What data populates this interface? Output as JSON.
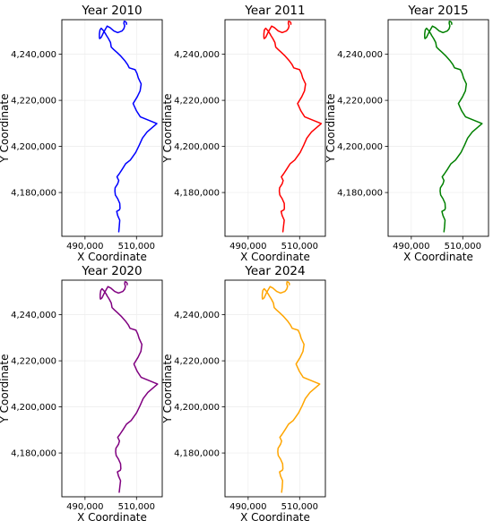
{
  "chart_data": [
    {
      "type": "line",
      "title": "Year 2010",
      "xlabel": "X Coordinate",
      "ylabel": "Y Coordinate",
      "xlim": [
        481000,
        520000
      ],
      "ylim": [
        4161000,
        4255000
      ],
      "xticks": [
        490000,
        510000
      ],
      "xtick_labels": [
        "490,000",
        "510,000"
      ],
      "yticks": [
        4180000,
        4200000,
        4220000,
        4240000
      ],
      "ytick_labels": [
        "4,180,000",
        "4,200,000",
        "4,220,000",
        "4,240,000"
      ],
      "grid": true,
      "color": "#0000ff",
      "x": [
        503100,
        503300,
        503500,
        502700,
        502300,
        503400,
        503600,
        503500,
        502700,
        501800,
        501600,
        501700,
        502700,
        503100,
        502400,
        503200,
        504400,
        505800,
        507600,
        509700,
        511100,
        512300,
        514100,
        517900,
        511500,
        510000,
        508700,
        510300,
        511400,
        511800,
        510700,
        510200,
        509500,
        507200,
        506500,
        505400,
        503900,
        502400,
        501100,
        500200,
        499900,
        499100,
        498300,
        497900,
        497200,
        496300,
        495800,
        495600,
        495600,
        495700,
        496300,
        497100,
        497900,
        498600,
        499700,
        501200,
        502700,
        504400,
        505100,
        505400,
        505100,
        505200,
        505700,
        506100,
        506100
      ],
      "y": [
        4163000,
        4165000,
        4168000,
        4170000,
        4171800,
        4172500,
        4173200,
        4175300,
        4177300,
        4178900,
        4180600,
        4182000,
        4183800,
        4185200,
        4186800,
        4188000,
        4190000,
        4192500,
        4194100,
        4197400,
        4200600,
        4203600,
        4206300,
        4209900,
        4212800,
        4215400,
        4218600,
        4221500,
        4224100,
        4227100,
        4229700,
        4231600,
        4233300,
        4234100,
        4235600,
        4237300,
        4239200,
        4240800,
        4242100,
        4243100,
        4245100,
        4246800,
        4248200,
        4249000,
        4250200,
        4251300,
        4250500,
        4248900,
        4247300,
        4246800,
        4247300,
        4249200,
        4250800,
        4252200,
        4251600,
        4250100,
        4249400,
        4250100,
        4251100,
        4252300,
        4253400,
        4254300,
        4254200,
        4253600,
        4253000
      ]
    },
    {
      "type": "line",
      "title": "Year 2011",
      "xlabel": "X Coordinate",
      "ylabel": "Y Coordinate",
      "xlim": [
        481000,
        520000
      ],
      "ylim": [
        4161000,
        4255000
      ],
      "xticks": [
        490000,
        510000
      ],
      "xtick_labels": [
        "490,000",
        "510,000"
      ],
      "yticks": [
        4180000,
        4200000,
        4220000,
        4240000
      ],
      "ytick_labels": [
        "4,180,000",
        "4,200,000",
        "4,220,000",
        "4,240,000"
      ],
      "grid": true,
      "color": "#ff0000",
      "x": [
        503500,
        503700,
        504000,
        503200,
        502800,
        503900,
        504100,
        504000,
        503200,
        502300,
        502100,
        502200,
        503200,
        503600,
        502900,
        503700,
        504900,
        506300,
        508100,
        510200,
        511600,
        512800,
        514600,
        518400,
        512000,
        510500,
        509200,
        510800,
        511900,
        512300,
        511200,
        510700,
        510000,
        507700,
        507000,
        505900,
        504400,
        502900,
        501600,
        500700,
        500400,
        499600,
        498800,
        498400,
        497700,
        496800,
        496300,
        496100,
        496100,
        496200,
        496800,
        497600,
        498400,
        499100,
        500200,
        501700,
        503200,
        504900,
        505600,
        505900,
        505600,
        505700,
        506200,
        506600,
        506600
      ],
      "y": [
        4163000,
        4165000,
        4168000,
        4170000,
        4171800,
        4172500,
        4173200,
        4175300,
        4177300,
        4178900,
        4180600,
        4182000,
        4183800,
        4185200,
        4186800,
        4188000,
        4190000,
        4192500,
        4194100,
        4197400,
        4200600,
        4203600,
        4206300,
        4209900,
        4212800,
        4215400,
        4218600,
        4221500,
        4224100,
        4227100,
        4229700,
        4231600,
        4233300,
        4234100,
        4235600,
        4237300,
        4239200,
        4240800,
        4242100,
        4243100,
        4245100,
        4246800,
        4248200,
        4249000,
        4250200,
        4251300,
        4250500,
        4248900,
        4247300,
        4246800,
        4247300,
        4249200,
        4250800,
        4252200,
        4251600,
        4250100,
        4249400,
        4250100,
        4251100,
        4252300,
        4253400,
        4254300,
        4254200,
        4253600,
        4253000
      ]
    },
    {
      "type": "line",
      "title": "Year 2015",
      "xlabel": "X Coordinate",
      "ylabel": "Y Coordinate",
      "xlim": [
        481000,
        520000
      ],
      "ylim": [
        4161000,
        4255000
      ],
      "xticks": [
        490000,
        510000
      ],
      "xtick_labels": [
        "490,000",
        "510,000"
      ],
      "yticks": [
        4180000,
        4200000,
        4220000,
        4240000
      ],
      "ytick_labels": [
        "4,180,000",
        "4,200,000",
        "4,220,000",
        "4,240,000"
      ],
      "grid": true,
      "color": "#008000",
      "x": [
        502700,
        502900,
        503100,
        502300,
        501900,
        503000,
        503200,
        503100,
        502300,
        501400,
        501200,
        501300,
        502300,
        502700,
        502000,
        502800,
        504000,
        505400,
        507200,
        509300,
        510700,
        511900,
        513700,
        517500,
        511100,
        509600,
        508300,
        509900,
        511000,
        511400,
        510300,
        509800,
        509100,
        506800,
        506100,
        505000,
        503500,
        502000,
        500700,
        499800,
        499500,
        498700,
        497900,
        497500,
        496800,
        495900,
        495400,
        495200,
        495200,
        495300,
        495900,
        496700,
        497500,
        498200,
        499300,
        500800,
        502300,
        504000,
        504700,
        505000,
        504700,
        504800,
        505300,
        505700,
        505700
      ],
      "y": [
        4163000,
        4165000,
        4168000,
        4170000,
        4171800,
        4172500,
        4173200,
        4175300,
        4177300,
        4178900,
        4180600,
        4182000,
        4183800,
        4185200,
        4186800,
        4188000,
        4190000,
        4192500,
        4194100,
        4197400,
        4200600,
        4203600,
        4206300,
        4209900,
        4212800,
        4215400,
        4218600,
        4221500,
        4224100,
        4227100,
        4229700,
        4231600,
        4233300,
        4234100,
        4235600,
        4237300,
        4239200,
        4240800,
        4242100,
        4243100,
        4245100,
        4246800,
        4248200,
        4249000,
        4250200,
        4251300,
        4250500,
        4248900,
        4247300,
        4246800,
        4247300,
        4249200,
        4250800,
        4252200,
        4251600,
        4250100,
        4249400,
        4250100,
        4251100,
        4252300,
        4253400,
        4254300,
        4254200,
        4253600,
        4253000
      ]
    },
    {
      "type": "line",
      "title": "Year 2020",
      "xlabel": "X Coordinate",
      "ylabel": "Y Coordinate",
      "xlim": [
        481000,
        520000
      ],
      "ylim": [
        4161000,
        4255000
      ],
      "xticks": [
        490000,
        510000
      ],
      "xtick_labels": [
        "490,000",
        "510,000"
      ],
      "yticks": [
        4180000,
        4200000,
        4220000,
        4240000
      ],
      "ytick_labels": [
        "4,180,000",
        "4,200,000",
        "4,220,000",
        "4,240,000"
      ],
      "grid": true,
      "color": "#800080",
      "x": [
        503300,
        503500,
        503800,
        503000,
        502600,
        503700,
        503900,
        503800,
        503000,
        502100,
        501900,
        502000,
        503000,
        503400,
        502700,
        503500,
        504700,
        506100,
        507900,
        510000,
        511400,
        512600,
        514400,
        518200,
        511800,
        510300,
        509000,
        510600,
        511700,
        512100,
        511000,
        510500,
        509800,
        507500,
        506800,
        505700,
        504200,
        502700,
        501400,
        500500,
        500200,
        499400,
        498600,
        498200,
        497500,
        496600,
        496100,
        495900,
        495900,
        496000,
        496600,
        497400,
        498200,
        498900,
        500000,
        501500,
        503000,
        504700,
        505400,
        505700,
        505400,
        505500,
        506000,
        506400,
        506400
      ],
      "y": [
        4163000,
        4165000,
        4168000,
        4170000,
        4171800,
        4172500,
        4173200,
        4175300,
        4177300,
        4178900,
        4180600,
        4182000,
        4183800,
        4185200,
        4186800,
        4188000,
        4190000,
        4192500,
        4194100,
        4197400,
        4200600,
        4203600,
        4206300,
        4209900,
        4212800,
        4215400,
        4218600,
        4221500,
        4224100,
        4227100,
        4229700,
        4231600,
        4233300,
        4234100,
        4235600,
        4237300,
        4239200,
        4240800,
        4242100,
        4243100,
        4245100,
        4246800,
        4248200,
        4249000,
        4250200,
        4251300,
        4250500,
        4248900,
        4247300,
        4246800,
        4247300,
        4249200,
        4250800,
        4252200,
        4251600,
        4250100,
        4249400,
        4250100,
        4251100,
        4252300,
        4253400,
        4254300,
        4254200,
        4253600,
        4253000
      ]
    },
    {
      "type": "line",
      "title": "Year 2024",
      "xlabel": "X Coordinate",
      "ylabel": "Y Coordinate",
      "xlim": [
        481000,
        520000
      ],
      "ylim": [
        4161000,
        4255000
      ],
      "xticks": [
        490000,
        510000
      ],
      "xtick_labels": [
        "490,000",
        "510,000"
      ],
      "yticks": [
        4180000,
        4200000,
        4220000,
        4240000
      ],
      "ytick_labels": [
        "4,180,000",
        "4,200,000",
        "4,220,000",
        "4,240,000"
      ],
      "grid": true,
      "color": "#ffa500",
      "x": [
        503000,
        503200,
        503400,
        502600,
        502200,
        503300,
        503500,
        503400,
        502600,
        501700,
        501500,
        501600,
        502600,
        503000,
        502300,
        503100,
        504300,
        505700,
        507500,
        509600,
        511000,
        512200,
        514000,
        517800,
        511400,
        509900,
        508600,
        510200,
        511300,
        511700,
        510600,
        510100,
        509400,
        507100,
        506400,
        505300,
        503800,
        502300,
        501000,
        500100,
        499800,
        499000,
        498200,
        497800,
        497100,
        496200,
        495700,
        495500,
        495500,
        495600,
        496200,
        497000,
        497800,
        498500,
        499600,
        501100,
        502600,
        504300,
        505000,
        505300,
        505000,
        505100,
        505600,
        506000,
        506000
      ],
      "y": [
        4163000,
        4165000,
        4168000,
        4170000,
        4171800,
        4172500,
        4173200,
        4175300,
        4177300,
        4178900,
        4180600,
        4182000,
        4183800,
        4185200,
        4186800,
        4188000,
        4190000,
        4192500,
        4194100,
        4197400,
        4200600,
        4203600,
        4206300,
        4209900,
        4212800,
        4215400,
        4218600,
        4221500,
        4224100,
        4227100,
        4229700,
        4231600,
        4233300,
        4234100,
        4235600,
        4237300,
        4239200,
        4240800,
        4242100,
        4243100,
        4245100,
        4246800,
        4248200,
        4249000,
        4250200,
        4251300,
        4250500,
        4248900,
        4247300,
        4246800,
        4247300,
        4249200,
        4250800,
        4252200,
        4251600,
        4250100,
        4249400,
        4250100,
        4251100,
        4252300,
        4253400,
        4254300,
        4254200,
        4253600,
        4253000
      ]
    }
  ]
}
